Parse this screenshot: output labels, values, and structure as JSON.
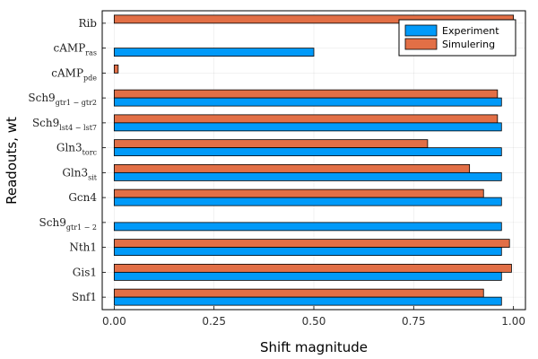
{
  "chart_data": {
    "type": "bar",
    "orientation": "horizontal",
    "xlabel": "Shift magnitude",
    "ylabel": "Readouts, wt",
    "xlim": [
      -0.03,
      1.03
    ],
    "xticks": [
      0.0,
      0.25,
      0.5,
      0.75,
      1.0
    ],
    "xtick_labels": [
      "0.00",
      "0.25",
      "0.50",
      "0.75",
      "1.00"
    ],
    "grid": true,
    "legend_position": "top-right",
    "categories": [
      {
        "base": "Rib",
        "sub": ""
      },
      {
        "base": "cAMP",
        "sub": "ras"
      },
      {
        "base": "cAMP",
        "sub": "pde"
      },
      {
        "base": "Sch9",
        "sub": "gtr1 − gtr2"
      },
      {
        "base": "Sch9",
        "sub": "lst4 − lst7"
      },
      {
        "base": "Gln3",
        "sub": "torc"
      },
      {
        "base": "Gln3",
        "sub": "sit"
      },
      {
        "base": "Gcn4",
        "sub": ""
      },
      {
        "base": "Sch9",
        "sub": "gtr1 − 2"
      },
      {
        "base": "Nth1",
        "sub": ""
      },
      {
        "base": "Gis1",
        "sub": ""
      },
      {
        "base": "Snf1",
        "sub": ""
      }
    ],
    "series": [
      {
        "name": "Experiment",
        "color": "#009AF9",
        "values": [
          0.0,
          0.5,
          0.0,
          0.97,
          0.97,
          0.97,
          0.97,
          0.97,
          0.97,
          0.97,
          0.97,
          0.97
        ]
      },
      {
        "name": "Simulering",
        "color": "#E26F46",
        "values": [
          1.0,
          0.0,
          0.01,
          0.96,
          0.96,
          0.785,
          0.89,
          0.925,
          0.0,
          0.99,
          0.995,
          0.925
        ]
      }
    ]
  }
}
